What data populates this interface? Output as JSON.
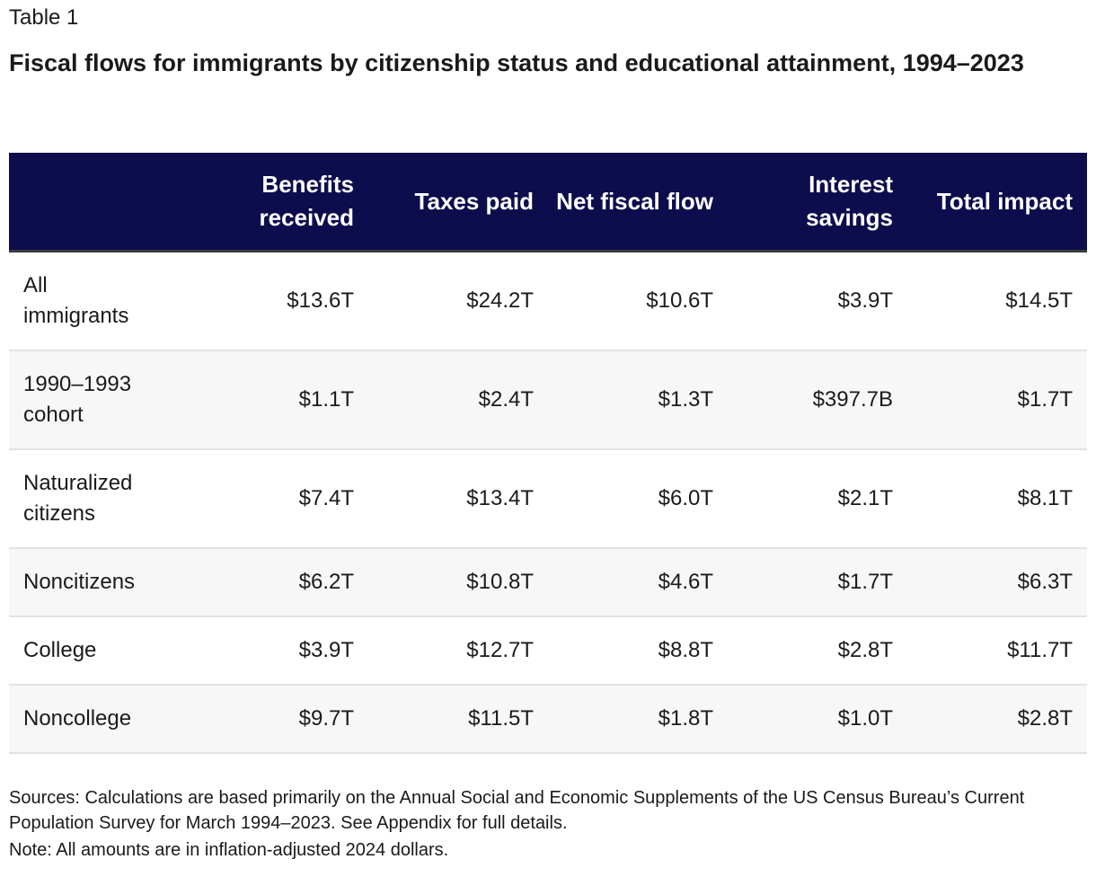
{
  "label": "Table 1",
  "title": "Fiscal flows for immigrants by citizenship status and educational attainment, 1994–2023",
  "headers": [
    "",
    "Benefits received",
    "Taxes paid",
    "Net fiscal flow",
    "Interest savings",
    "Total impact"
  ],
  "rows": [
    [
      "All immigrants",
      "$13.6T",
      "$24.2T",
      "$10.6T",
      "$3.9T",
      "$14.5T"
    ],
    [
      "1990–1993 cohort",
      "$1.1T",
      "$2.4T",
      "$1.3T",
      "$397.7B",
      "$1.7T"
    ],
    [
      "Naturalized citizens",
      "$7.4T",
      "$13.4T",
      "$6.0T",
      "$2.1T",
      "$8.1T"
    ],
    [
      "Noncitizens",
      "$6.2T",
      "$10.8T",
      "$4.6T",
      "$1.7T",
      "$6.3T"
    ],
    [
      "College",
      "$3.9T",
      "$12.7T",
      "$8.8T",
      "$2.8T",
      "$11.7T"
    ],
    [
      "Noncollege",
      "$9.7T",
      "$11.5T",
      "$1.8T",
      "$1.0T",
      "$2.8T"
    ]
  ],
  "sources": "Sources: Calculations are based primarily on the Annual Social and Economic Supplements of the US Census Bureau’s Current Population Survey for March 1994–2023. See Appendix for full details.",
  "note": "Note: All amounts are in inflation-adjusted 2024 dollars.",
  "colors": {
    "header_bg": "#0d0d4d",
    "stripe": "#f7f7f7"
  }
}
